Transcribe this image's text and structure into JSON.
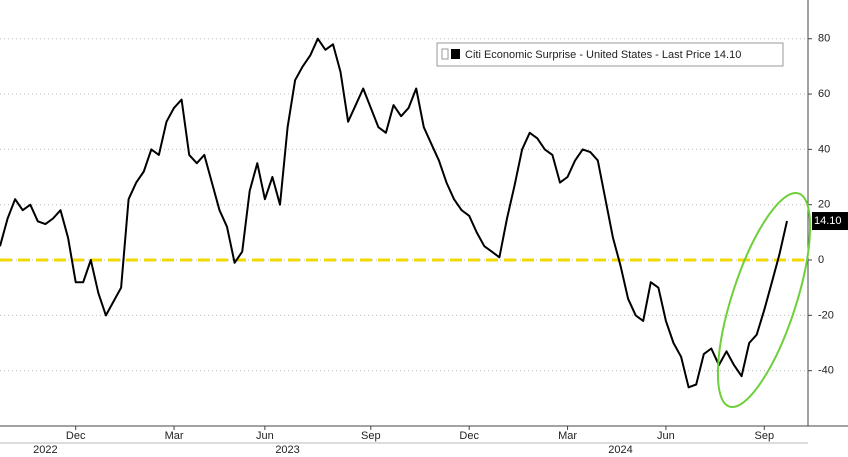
{
  "chart_data": {
    "type": "line",
    "categories": [
      null,
      null,
      null,
      null,
      null,
      null,
      null,
      null,
      null,
      null,
      "Dec",
      null,
      null,
      null,
      null,
      null,
      null,
      null,
      null,
      null,
      null,
      null,
      null,
      "Mar",
      null,
      null,
      null,
      null,
      null,
      null,
      null,
      null,
      null,
      null,
      null,
      "Jun",
      null,
      null,
      null,
      null,
      null,
      null,
      null,
      null,
      null,
      null,
      null,
      null,
      null,
      "Sep",
      null,
      null,
      null,
      null,
      null,
      null,
      null,
      null,
      null,
      null,
      null,
      null,
      "Dec",
      null,
      null,
      null,
      null,
      null,
      null,
      null,
      null,
      null,
      null,
      null,
      null,
      "Mar",
      null,
      null,
      null,
      null,
      null,
      null,
      null,
      null,
      null,
      null,
      null,
      null,
      "Jun",
      null,
      null,
      null,
      null,
      null,
      null,
      null,
      null,
      null,
      null,
      null,
      null,
      "Sep",
      null,
      null,
      null
    ],
    "category_years": [
      null,
      null,
      null,
      null,
      null,
      null,
      "2022",
      null,
      null,
      null,
      null,
      null,
      null,
      null,
      null,
      null,
      null,
      null,
      null,
      null,
      null,
      null,
      null,
      null,
      null,
      null,
      null,
      null,
      null,
      null,
      null,
      null,
      null,
      null,
      null,
      null,
      null,
      null,
      "2023",
      null,
      null,
      null,
      null,
      null,
      null,
      null,
      null,
      null,
      null,
      null,
      null,
      null,
      null,
      null,
      null,
      null,
      null,
      null,
      null,
      null,
      null,
      null,
      null,
      null,
      null,
      null,
      null,
      null,
      null,
      null,
      null,
      null,
      null,
      null,
      null,
      null,
      null,
      null,
      null,
      null,
      null,
      null,
      "2024",
      null,
      null,
      null,
      null,
      null,
      null,
      null,
      null,
      null,
      null,
      null,
      null,
      null,
      null,
      null,
      null,
      null,
      null,
      null,
      null,
      null,
      null,
      null
    ],
    "series": [
      {
        "name": "Citi Economic Surprise - United States - Last Price 14.10",
        "color": "#000000",
        "values": [
          5,
          15,
          22,
          18,
          20,
          14,
          13,
          15,
          18,
          8,
          -8,
          -8,
          0,
          -12,
          -20,
          -15,
          -10,
          22,
          28,
          32,
          40,
          38,
          50,
          55,
          58,
          38,
          35,
          38,
          28,
          18,
          12,
          -1,
          3,
          25,
          35,
          22,
          30,
          20,
          48,
          65,
          70,
          74,
          80,
          76,
          78,
          68,
          50,
          56,
          62,
          55,
          48,
          46,
          56,
          52,
          55,
          62,
          48,
          42,
          36,
          28,
          22,
          18,
          16,
          10,
          5,
          3,
          1,
          15,
          27,
          40,
          46,
          44,
          40,
          38,
          28,
          30,
          36,
          40,
          39,
          36,
          22,
          8,
          -2,
          -14,
          -20,
          -22,
          -8,
          -10,
          -22,
          -30,
          -35,
          -46,
          -45,
          -34,
          -32,
          -38,
          -33,
          -38,
          -42,
          -30,
          -27,
          -18,
          -8,
          2,
          14.1
        ],
        "value_labels": [
          null,
          null,
          null,
          null,
          null,
          null,
          null,
          null,
          null,
          null,
          null,
          null,
          null,
          null,
          null,
          null,
          null,
          null,
          null,
          null,
          null,
          null,
          null,
          null,
          null,
          null,
          null,
          null,
          null,
          null,
          null,
          null,
          null,
          null,
          null,
          null,
          null,
          null,
          null,
          null,
          null,
          null,
          null,
          null,
          null,
          null,
          null,
          null,
          null,
          null,
          null,
          null,
          null,
          null,
          null,
          null,
          null,
          null,
          null,
          null,
          null,
          null,
          null,
          null,
          null,
          null,
          null,
          null,
          null,
          null,
          null,
          null,
          null,
          null,
          null,
          null,
          null,
          null,
          null,
          null,
          null,
          null,
          null,
          null,
          null,
          null,
          null,
          null,
          null,
          null,
          null,
          null,
          null,
          null,
          null,
          null,
          null,
          null,
          null,
          null,
          null,
          null,
          null,
          null,
          "14.10"
        ]
      }
    ],
    "reference_line": {
      "value": 0,
      "color": "#f2d900"
    },
    "ylim": [
      -60,
      94
    ],
    "yticks": [
      -40,
      -20,
      0,
      20,
      40,
      60,
      80
    ],
    "grid": true
  }
}
